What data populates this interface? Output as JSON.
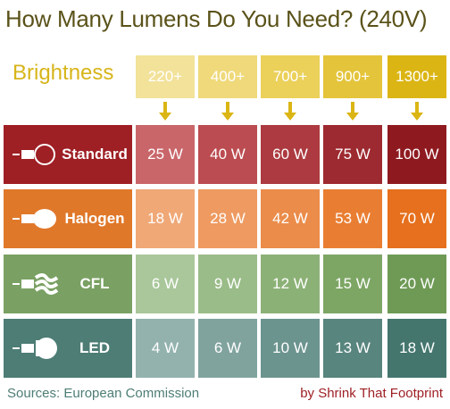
{
  "header": {
    "title": "How Many Lumens Do You Need? (240V)",
    "brightness_label": "Brightness",
    "lumens": [
      "220+",
      "400+",
      "700+",
      "900+",
      "1300+"
    ]
  },
  "rows": [
    {
      "label": "Standard",
      "watts": [
        "25 W",
        "40 W",
        "60 W",
        "75 W",
        "100 W"
      ]
    },
    {
      "label": "Halogen",
      "watts": [
        "18 W",
        "28 W",
        "42 W",
        "53 W",
        "70 W"
      ]
    },
    {
      "label": "CFL",
      "watts": [
        "6 W",
        "9 W",
        "12 W",
        "15 W",
        "20 W"
      ]
    },
    {
      "label": "LED",
      "watts": [
        "4 W",
        "6 W",
        "10 W",
        "13 W",
        "18 W"
      ]
    }
  ],
  "footer": {
    "source": "Sources: European Commission",
    "credit": "by Shrink That Footprint"
  }
}
